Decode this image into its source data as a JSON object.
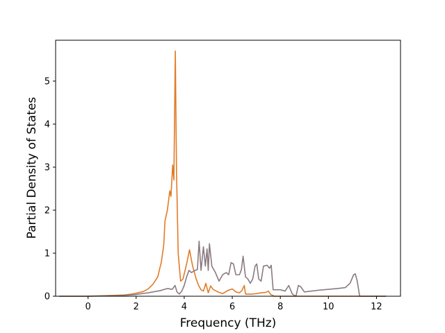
{
  "chart_data": {
    "type": "line",
    "title": "",
    "xlabel": "Frequency (THz)",
    "ylabel": "Partial Density of States",
    "xlim": [
      -1.35,
      13.0
    ],
    "ylim": [
      0,
      5.95
    ],
    "xticks": [
      0,
      2,
      4,
      6,
      8,
      10,
      12
    ],
    "yticks": [
      0,
      1,
      2,
      3,
      4,
      5
    ],
    "grid": false,
    "legend": "none",
    "series": [
      {
        "color": "#e07b26",
        "points": [
          [
            -1.2,
            0
          ],
          [
            0.0,
            0.0
          ],
          [
            0.5,
            0.01
          ],
          [
            1.0,
            0.02
          ],
          [
            1.5,
            0.03
          ],
          [
            1.8,
            0.05
          ],
          [
            2.0,
            0.07
          ],
          [
            2.3,
            0.11
          ],
          [
            2.5,
            0.17
          ],
          [
            2.7,
            0.28
          ],
          [
            2.9,
            0.45
          ],
          [
            3.05,
            0.8
          ],
          [
            3.15,
            1.2
          ],
          [
            3.2,
            1.75
          ],
          [
            3.3,
            2.0
          ],
          [
            3.4,
            2.45
          ],
          [
            3.45,
            2.32
          ],
          [
            3.52,
            3.05
          ],
          [
            3.57,
            2.7
          ],
          [
            3.63,
            5.7
          ],
          [
            3.68,
            2.9
          ],
          [
            3.75,
            1.0
          ],
          [
            3.85,
            0.35
          ],
          [
            3.95,
            0.4
          ],
          [
            4.1,
            0.75
          ],
          [
            4.22,
            1.08
          ],
          [
            4.35,
            0.7
          ],
          [
            4.5,
            0.4
          ],
          [
            4.6,
            0.25
          ],
          [
            4.7,
            0.15
          ],
          [
            4.8,
            0.12
          ],
          [
            4.9,
            0.3
          ],
          [
            5.0,
            0.08
          ],
          [
            5.1,
            0.24
          ],
          [
            5.2,
            0.16
          ],
          [
            5.4,
            0.1
          ],
          [
            5.6,
            0.06
          ],
          [
            5.8,
            0.13
          ],
          [
            6.0,
            0.17
          ],
          [
            6.15,
            0.1
          ],
          [
            6.3,
            0.08
          ],
          [
            6.4,
            0.13
          ],
          [
            6.5,
            0.25
          ],
          [
            6.55,
            0.05
          ],
          [
            6.8,
            0.05
          ],
          [
            7.0,
            0.06
          ],
          [
            7.2,
            0.08
          ],
          [
            7.4,
            0.09
          ],
          [
            7.5,
            0.12
          ],
          [
            7.6,
            0.04
          ],
          [
            7.75,
            0.0
          ],
          [
            9.0,
            0.0
          ],
          [
            11.0,
            0.0
          ],
          [
            12.4,
            0.0
          ]
        ]
      },
      {
        "color": "#8a7a80",
        "points": [
          [
            -1.2,
            0
          ],
          [
            0.0,
            0.0
          ],
          [
            0.5,
            0.005
          ],
          [
            1.0,
            0.01
          ],
          [
            1.5,
            0.02
          ],
          [
            2.0,
            0.04
          ],
          [
            2.5,
            0.08
          ],
          [
            3.0,
            0.13
          ],
          [
            3.3,
            0.18
          ],
          [
            3.5,
            0.16
          ],
          [
            3.62,
            0.25
          ],
          [
            3.7,
            0.1
          ],
          [
            3.8,
            0.05
          ],
          [
            3.9,
            0.12
          ],
          [
            4.0,
            0.25
          ],
          [
            4.1,
            0.45
          ],
          [
            4.2,
            0.6
          ],
          [
            4.3,
            0.55
          ],
          [
            4.45,
            0.6
          ],
          [
            4.55,
            0.62
          ],
          [
            4.62,
            1.28
          ],
          [
            4.7,
            0.6
          ],
          [
            4.8,
            1.15
          ],
          [
            4.88,
            0.7
          ],
          [
            4.95,
            1.1
          ],
          [
            5.0,
            0.6
          ],
          [
            5.05,
            1.22
          ],
          [
            5.15,
            0.7
          ],
          [
            5.3,
            0.55
          ],
          [
            5.45,
            0.35
          ],
          [
            5.6,
            0.5
          ],
          [
            5.75,
            0.55
          ],
          [
            5.85,
            0.5
          ],
          [
            5.95,
            0.78
          ],
          [
            6.05,
            0.75
          ],
          [
            6.15,
            0.5
          ],
          [
            6.3,
            0.5
          ],
          [
            6.38,
            0.62
          ],
          [
            6.45,
            0.93
          ],
          [
            6.55,
            0.45
          ],
          [
            6.65,
            0.4
          ],
          [
            6.75,
            0.3
          ],
          [
            6.85,
            0.4
          ],
          [
            6.95,
            0.7
          ],
          [
            7.02,
            0.75
          ],
          [
            7.1,
            0.4
          ],
          [
            7.2,
            0.35
          ],
          [
            7.3,
            0.7
          ],
          [
            7.45,
            0.72
          ],
          [
            7.55,
            0.65
          ],
          [
            7.62,
            0.72
          ],
          [
            7.7,
            0.15
          ],
          [
            8.0,
            0.15
          ],
          [
            8.2,
            0.12
          ],
          [
            8.35,
            0.25
          ],
          [
            8.5,
            0.05
          ],
          [
            8.65,
            0.0
          ],
          [
            8.75,
            0.25
          ],
          [
            8.85,
            0.22
          ],
          [
            9.0,
            0.1
          ],
          [
            9.3,
            0.12
          ],
          [
            9.6,
            0.14
          ],
          [
            10.0,
            0.16
          ],
          [
            10.4,
            0.18
          ],
          [
            10.7,
            0.2
          ],
          [
            10.9,
            0.3
          ],
          [
            11.05,
            0.5
          ],
          [
            11.12,
            0.52
          ],
          [
            11.2,
            0.35
          ],
          [
            11.3,
            0.0
          ],
          [
            12.4,
            0.0
          ]
        ]
      }
    ]
  }
}
